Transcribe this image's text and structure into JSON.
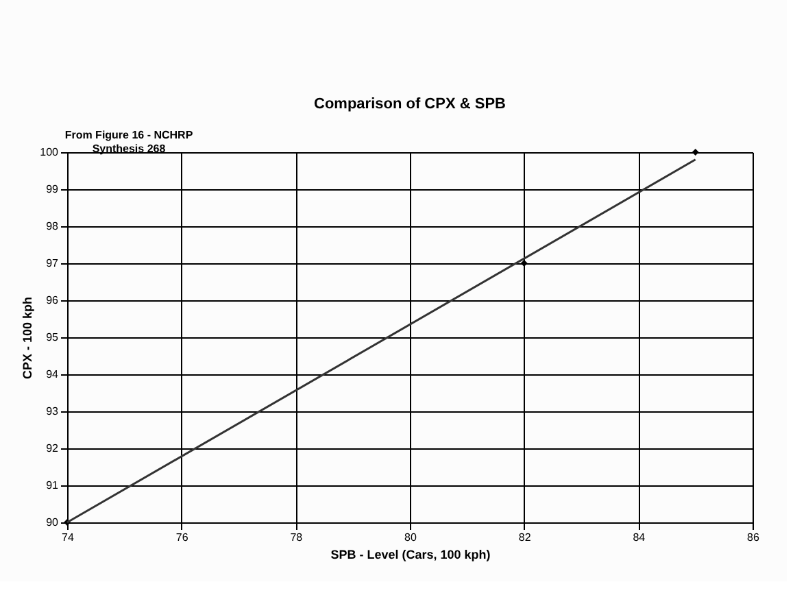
{
  "chart_data": {
    "type": "scatter",
    "title": "Comparison of CPX & SPB",
    "xlabel": "SPB - Level (Cars, 100 kph)",
    "ylabel": "CPX - 100 kph",
    "annotations": [
      "From Figure 16 - NCHRP\nSynthesis 268"
    ],
    "series": [
      {
        "color": "#000000",
        "marker": "diamond",
        "x": [
          74,
          82,
          85
        ],
        "values": [
          90,
          97,
          100
        ]
      },
      {
        "type": "line",
        "color": "#333333",
        "marker": "none",
        "line_style": "solid",
        "x": [
          74,
          85
        ],
        "values": [
          90,
          99.8
        ]
      }
    ],
    "xlim": [
      74,
      86
    ],
    "xticks": [
      74,
      76,
      78,
      80,
      82,
      84,
      86
    ],
    "ylim": [
      90,
      100
    ],
    "yticks": [
      90,
      91,
      92,
      93,
      94,
      95,
      96,
      97,
      98,
      99,
      100
    ],
    "grid": true
  }
}
